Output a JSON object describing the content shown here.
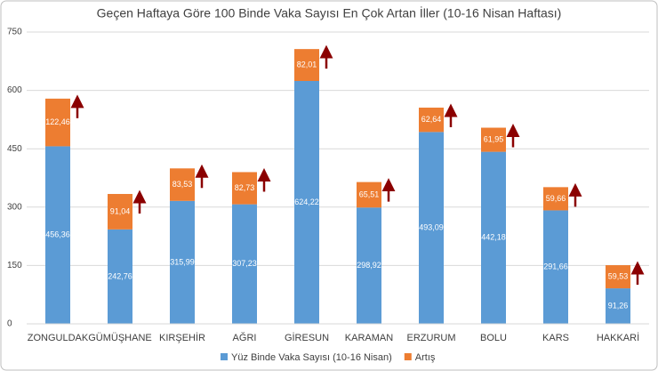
{
  "chart_data": {
    "type": "stacked_bar",
    "title": "Geçen Haftaya Göre 100 Binde Vaka Sayısı En Çok Artan İller (10-16 Nisan Haftası)",
    "categories": [
      "ZONGULDAK",
      "GÜMÜŞHANE",
      "KIRŞEHİR",
      "AĞRI",
      "GİRESUN",
      "KARAMAN",
      "ERZURUM",
      "BOLU",
      "KARS",
      "HAKKARİ"
    ],
    "series": [
      {
        "name": "Yüz Binde Vaka Sayısı (10-16 Nisan)",
        "color": "#5b9bd5",
        "values": [
          456.36,
          242.76,
          315.99,
          307.23,
          624.22,
          298.92,
          493.09,
          442.18,
          291.66,
          91.26
        ],
        "value_labels": [
          "456,36",
          "242,76",
          "315,99",
          "307,23",
          "624,22",
          "298,92",
          "493,09",
          "442,18",
          "291,66",
          "91,26"
        ]
      },
      {
        "name": "Artış",
        "color": "#ed7d31",
        "values": [
          122.46,
          91.04,
          83.53,
          82.73,
          82.01,
          65.51,
          62.64,
          61.95,
          59.66,
          59.53
        ],
        "value_labels": [
          "122,46",
          "91,04",
          "83,53",
          "82,73",
          "82,01",
          "65,51",
          "62,64",
          "61,95",
          "59,66",
          "59,53"
        ]
      }
    ],
    "ylim": [
      0,
      750
    ],
    "yticks": [
      0,
      150,
      300,
      450,
      600,
      750
    ],
    "grid": true,
    "legend": "bottom"
  }
}
